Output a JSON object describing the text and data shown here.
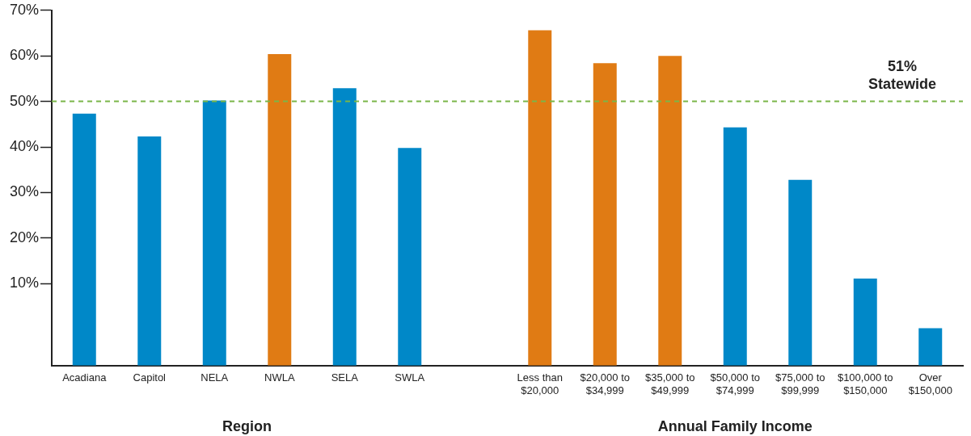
{
  "chart_data": {
    "type": "bar",
    "categories": [
      "Acadiana",
      "Capitol",
      "NELA",
      "NWLA",
      "SELA",
      "SWLA",
      null,
      "Less than\n$20,000",
      "$20,000 to\n$34,999",
      "$35,000 to\n$49,999",
      "$50,000 to\n$74,999",
      "$75,000 to\n$99,999",
      "$100,000 to\n$150,000",
      "Over\n$150,000"
    ],
    "values": [
      55.3,
      50.3,
      58.2,
      68.4,
      60.9,
      47.8,
      null,
      73.6,
      66.4,
      68.0,
      52.3,
      40.8,
      19.1,
      8.2
    ],
    "base": [
      -8,
      -8,
      -8,
      -8,
      -8,
      -8,
      null,
      -8,
      -8,
      -8,
      -8,
      -8,
      -8,
      -8
    ],
    "colors": [
      "#0088c8",
      "#0088c8",
      "#0088c8",
      "#e07b14",
      "#0088c8",
      "#0088c8",
      null,
      "#e07b14",
      "#e07b14",
      "#e07b14",
      "#0088c8",
      "#0088c8",
      "#0088c8",
      "#0088c8"
    ],
    "ylim": [
      -8,
      70
    ],
    "yticks": [
      {
        "value": 10,
        "label": "10%"
      },
      {
        "value": 20,
        "label": "20%"
      },
      {
        "value": 30,
        "label": "30%"
      },
      {
        "value": 40,
        "label": "40%"
      },
      {
        "value": 50,
        "label": "50%"
      },
      {
        "value": 60,
        "label": "60%"
      },
      {
        "value": 70,
        "label": "70%"
      }
    ],
    "ref_lines": [
      {
        "axis": "y",
        "value": 50,
        "label": "51%\nStatewide",
        "color": "#7ab648",
        "line_style": "dashed"
      }
    ],
    "annotations": [
      "Region",
      "Annual Family Income"
    ],
    "grid": false,
    "legend": false
  }
}
